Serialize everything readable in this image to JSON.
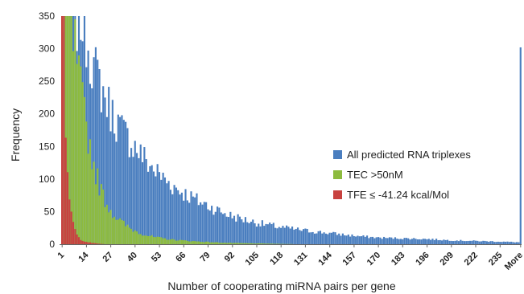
{
  "chart_data": {
    "type": "bar",
    "title": "",
    "xlabel": "Number of cooperating miRNA pairs per gene",
    "ylabel": "Frequency",
    "ylim": [
      0,
      350
    ],
    "yticks": [
      "0",
      "50",
      "100",
      "150",
      "200",
      "250",
      "300",
      "350"
    ],
    "xticks": [
      "1",
      "14",
      "27",
      "40",
      "53",
      "66",
      "79",
      "92",
      "105",
      "118",
      "131",
      "144",
      "157",
      "170",
      "183",
      "196",
      "209",
      "222",
      "235",
      "More"
    ],
    "legend_position": "right",
    "grid": false,
    "bin_count": 246,
    "series": [
      {
        "name": "All predicted RNA triplexes",
        "color": "#4a7ebf",
        "control_points": [
          [
            1,
            350
          ],
          [
            12,
            350
          ],
          [
            15,
            310
          ],
          [
            18,
            270
          ],
          [
            22,
            240
          ],
          [
            27,
            205
          ],
          [
            33,
            175
          ],
          [
            40,
            150
          ],
          [
            50,
            115
          ],
          [
            60,
            90
          ],
          [
            70,
            72
          ],
          [
            80,
            58
          ],
          [
            92,
            43
          ],
          [
            105,
            33
          ],
          [
            118,
            26
          ],
          [
            131,
            21
          ],
          [
            144,
            17
          ],
          [
            157,
            13
          ],
          [
            170,
            10
          ],
          [
            183,
            9
          ],
          [
            196,
            8
          ],
          [
            209,
            6
          ],
          [
            222,
            5
          ],
          [
            235,
            4
          ],
          [
            245,
            3
          ]
        ],
        "more": 302
      },
      {
        "name": "TEC >50nM",
        "color": "#8dbb3e",
        "control_points": [
          [
            1,
            350
          ],
          [
            5,
            350
          ],
          [
            8,
            300
          ],
          [
            10,
            255
          ],
          [
            12,
            215
          ],
          [
            14,
            185
          ],
          [
            16,
            150
          ],
          [
            18,
            122
          ],
          [
            20,
            100
          ],
          [
            22,
            82
          ],
          [
            25,
            62
          ],
          [
            28,
            48
          ],
          [
            32,
            36
          ],
          [
            37,
            25
          ],
          [
            43,
            17
          ],
          [
            50,
            11
          ],
          [
            60,
            7
          ],
          [
            75,
            4
          ],
          [
            90,
            2
          ],
          [
            110,
            1
          ],
          [
            130,
            0
          ]
        ],
        "more": 0
      },
      {
        "name": "TFE ≤ -41.24 kcal/Mol",
        "color": "#c8423f",
        "control_points": [
          [
            1,
            350
          ],
          [
            2,
            350
          ],
          [
            3,
            142
          ],
          [
            4,
            102
          ],
          [
            5,
            72
          ],
          [
            6,
            48
          ],
          [
            7,
            32
          ],
          [
            8,
            22
          ],
          [
            9,
            14
          ],
          [
            10,
            10
          ],
          [
            12,
            6
          ],
          [
            15,
            3
          ],
          [
            20,
            1
          ],
          [
            25,
            0
          ]
        ],
        "more": 0
      }
    ]
  }
}
